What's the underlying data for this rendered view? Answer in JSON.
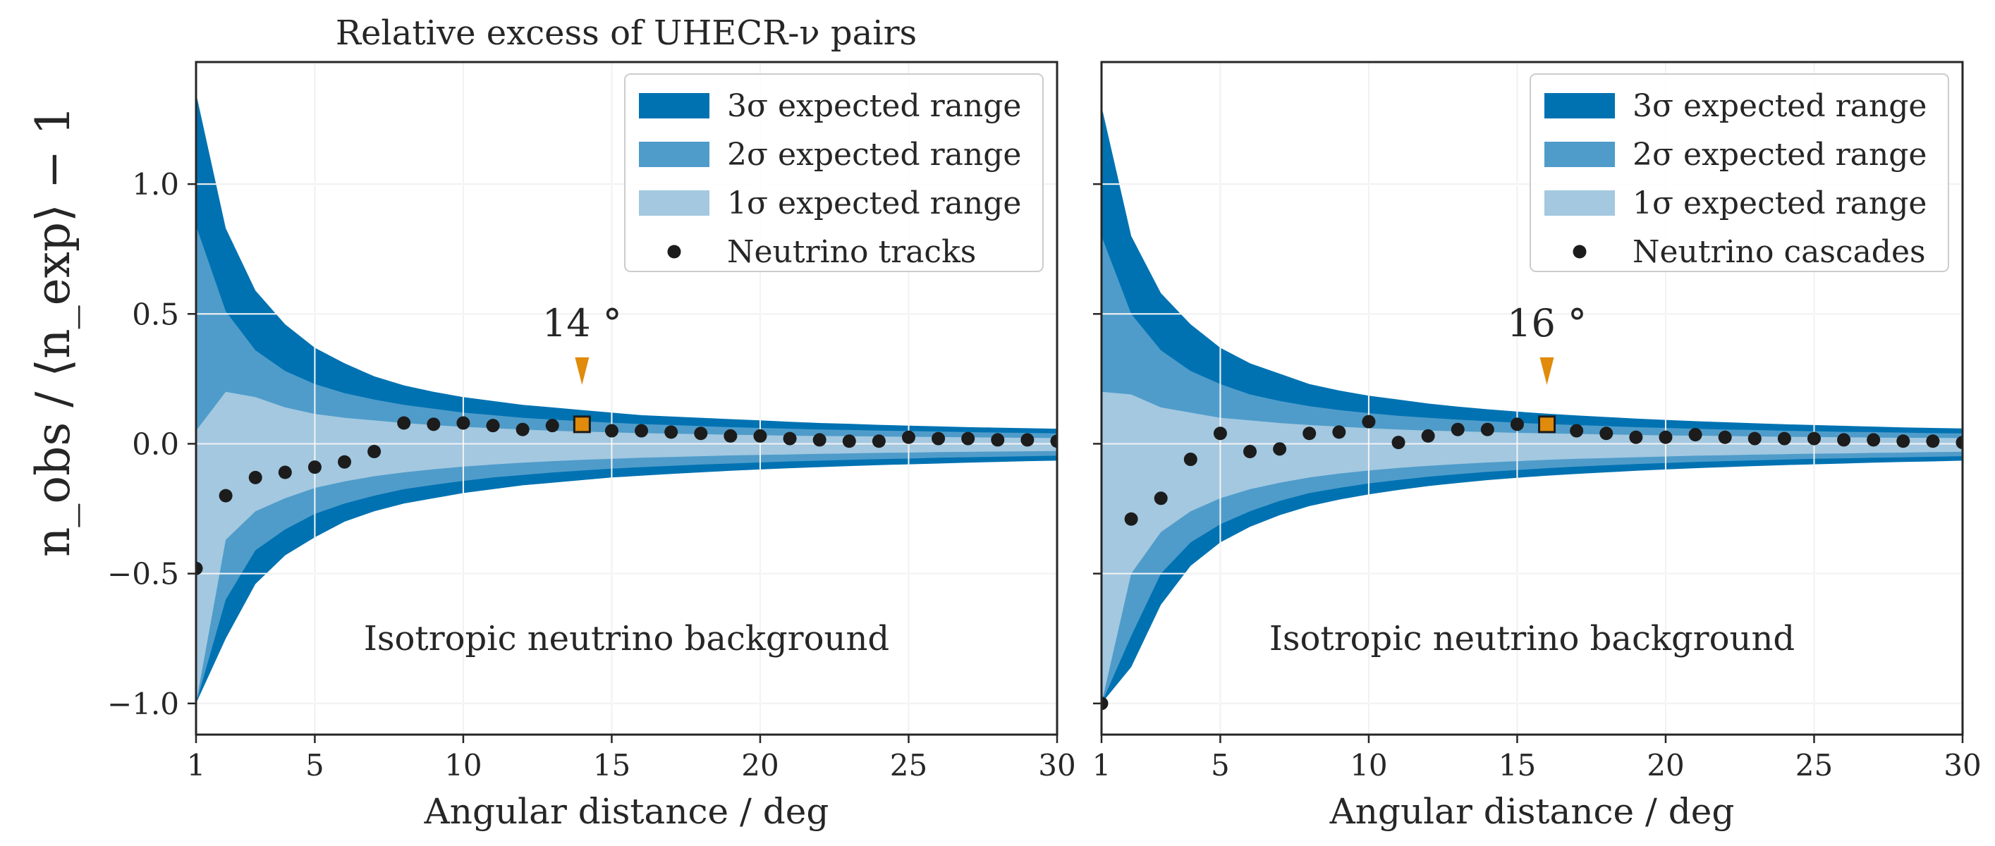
{
  "chart_data": [
    {
      "type": "scatter",
      "title": "Relative excess of UHECR-ν pairs",
      "xlabel": "Angular distance / deg",
      "ylabel": "n_obs / ⟨n_exp⟩ − 1",
      "xlim": [
        1,
        30
      ],
      "ylim": [
        -1.12,
        1.47
      ],
      "grid": true,
      "xticks": [
        1,
        5,
        10,
        15,
        20,
        25,
        30
      ],
      "xtick_labels": [
        "1",
        "5",
        "10",
        "15",
        "20",
        "25",
        "30"
      ],
      "yticks": [
        -1.0,
        -0.5,
        0.0,
        0.5,
        1.0
      ],
      "ytick_labels": [
        "−1.0",
        "−0.5",
        "0.0",
        "0.5",
        "1.0"
      ],
      "bands_x": [
        1,
        2,
        3,
        4,
        5,
        6,
        7,
        8,
        9,
        10,
        11,
        12,
        13,
        14,
        15,
        16,
        17,
        18,
        19,
        20,
        21,
        22,
        23,
        24,
        25,
        26,
        27,
        28,
        29,
        30
      ],
      "band_3sigma_upper": [
        1.35,
        0.83,
        0.59,
        0.46,
        0.37,
        0.31,
        0.26,
        0.225,
        0.2,
        0.18,
        0.165,
        0.15,
        0.14,
        0.13,
        0.12,
        0.11,
        0.105,
        0.1,
        0.095,
        0.09,
        0.085,
        0.08,
        0.077,
        0.073,
        0.07,
        0.067,
        0.064,
        0.062,
        0.06,
        0.058
      ],
      "band_2sigma_upper": [
        0.84,
        0.51,
        0.36,
        0.28,
        0.23,
        0.195,
        0.17,
        0.15,
        0.135,
        0.12,
        0.11,
        0.1,
        0.093,
        0.087,
        0.081,
        0.076,
        0.072,
        0.068,
        0.064,
        0.061,
        0.058,
        0.055,
        0.053,
        0.051,
        0.049,
        0.047,
        0.045,
        0.043,
        0.042,
        0.04
      ],
      "band_1sigma_upper": [
        0.05,
        0.2,
        0.18,
        0.14,
        0.115,
        0.1,
        0.09,
        0.08,
        0.072,
        0.065,
        0.06,
        0.055,
        0.05,
        0.047,
        0.044,
        0.041,
        0.039,
        0.037,
        0.035,
        0.033,
        0.031,
        0.03,
        0.029,
        0.028,
        0.027,
        0.026,
        0.025,
        0.024,
        0.023,
        0.022
      ],
      "band_1sigma_lower": [
        -1.0,
        -0.37,
        -0.26,
        -0.21,
        -0.17,
        -0.145,
        -0.125,
        -0.11,
        -0.098,
        -0.088,
        -0.08,
        -0.073,
        -0.067,
        -0.062,
        -0.058,
        -0.054,
        -0.051,
        -0.048,
        -0.045,
        -0.043,
        -0.041,
        -0.039,
        -0.037,
        -0.035,
        -0.034,
        -0.032,
        -0.031,
        -0.03,
        -0.029,
        -0.028
      ],
      "band_2sigma_lower": [
        -1.0,
        -0.6,
        -0.41,
        -0.33,
        -0.27,
        -0.23,
        -0.2,
        -0.175,
        -0.158,
        -0.143,
        -0.13,
        -0.12,
        -0.111,
        -0.103,
        -0.096,
        -0.09,
        -0.085,
        -0.08,
        -0.076,
        -0.072,
        -0.068,
        -0.065,
        -0.062,
        -0.059,
        -0.057,
        -0.054,
        -0.052,
        -0.05,
        -0.048,
        -0.046
      ],
      "band_3sigma_lower": [
        -1.0,
        -0.75,
        -0.54,
        -0.43,
        -0.36,
        -0.3,
        -0.26,
        -0.23,
        -0.21,
        -0.19,
        -0.175,
        -0.16,
        -0.15,
        -0.14,
        -0.13,
        -0.123,
        -0.116,
        -0.11,
        -0.104,
        -0.099,
        -0.094,
        -0.09,
        -0.086,
        -0.082,
        -0.079,
        -0.076,
        -0.073,
        -0.07,
        -0.067,
        -0.065
      ],
      "points_x": [
        1,
        2,
        3,
        4,
        5,
        6,
        7,
        8,
        9,
        10,
        11,
        12,
        13,
        14,
        15,
        16,
        17,
        18,
        19,
        20,
        21,
        22,
        23,
        24,
        25,
        26,
        27,
        28,
        29,
        30
      ],
      "points_y": [
        -0.48,
        -0.2,
        -0.13,
        -0.11,
        -0.09,
        -0.07,
        -0.03,
        0.08,
        0.075,
        0.08,
        0.07,
        0.055,
        0.07,
        0.075,
        0.05,
        0.05,
        0.045,
        0.04,
        0.03,
        0.03,
        0.02,
        0.015,
        0.01,
        0.01,
        0.025,
        0.02,
        0.02,
        0.015,
        0.015,
        0.01
      ],
      "marker": {
        "x": 14,
        "y": 0.075,
        "label": "14 °"
      },
      "annotation": "Isotropic neutrino background",
      "legend_position": "top-right",
      "legend": [
        "3σ expected range",
        "2σ expected range",
        "1σ expected range",
        "Neutrino tracks"
      ]
    },
    {
      "type": "scatter",
      "title": "",
      "xlabel": "Angular distance / deg",
      "ylabel": "",
      "xlim": [
        1,
        30
      ],
      "ylim": [
        -1.12,
        1.47
      ],
      "grid": true,
      "xticks": [
        1,
        5,
        10,
        15,
        20,
        25,
        30
      ],
      "xtick_labels": [
        "1",
        "5",
        "10",
        "15",
        "20",
        "25",
        "30"
      ],
      "yticks": [
        -1.0,
        -0.5,
        0.0,
        0.5,
        1.0
      ],
      "ytick_labels": [],
      "bands_x": [
        1,
        2,
        3,
        4,
        5,
        6,
        7,
        8,
        9,
        10,
        11,
        12,
        13,
        14,
        15,
        16,
        17,
        18,
        19,
        20,
        21,
        22,
        23,
        24,
        25,
        26,
        27,
        28,
        29,
        30
      ],
      "band_3sigma_upper": [
        1.3,
        0.8,
        0.58,
        0.46,
        0.37,
        0.31,
        0.27,
        0.23,
        0.205,
        0.185,
        0.17,
        0.155,
        0.143,
        0.133,
        0.124,
        0.116,
        0.109,
        0.103,
        0.097,
        0.092,
        0.087,
        0.083,
        0.079,
        0.075,
        0.072,
        0.069,
        0.066,
        0.063,
        0.061,
        0.059
      ],
      "band_2sigma_upper": [
        0.8,
        0.5,
        0.36,
        0.28,
        0.23,
        0.19,
        0.165,
        0.145,
        0.13,
        0.118,
        0.108,
        0.1,
        0.093,
        0.087,
        0.081,
        0.076,
        0.072,
        0.068,
        0.064,
        0.061,
        0.058,
        0.055,
        0.053,
        0.05,
        0.048,
        0.046,
        0.045,
        0.043,
        0.041,
        0.04
      ],
      "band_1sigma_upper": [
        0.2,
        0.19,
        0.14,
        0.12,
        0.1,
        0.09,
        0.08,
        0.072,
        0.066,
        0.06,
        0.055,
        0.051,
        0.048,
        0.045,
        0.042,
        0.04,
        0.038,
        0.036,
        0.034,
        0.032,
        0.031,
        0.03,
        0.028,
        0.027,
        0.026,
        0.025,
        0.024,
        0.023,
        0.023,
        0.022
      ],
      "band_1sigma_lower": [
        -1.0,
        -0.5,
        -0.34,
        -0.26,
        -0.21,
        -0.175,
        -0.15,
        -0.13,
        -0.115,
        -0.103,
        -0.093,
        -0.085,
        -0.078,
        -0.072,
        -0.067,
        -0.062,
        -0.058,
        -0.055,
        -0.052,
        -0.049,
        -0.046,
        -0.044,
        -0.042,
        -0.04,
        -0.038,
        -0.037,
        -0.035,
        -0.034,
        -0.032,
        -0.031
      ],
      "band_2sigma_lower": [
        -1.0,
        -0.74,
        -0.5,
        -0.38,
        -0.31,
        -0.26,
        -0.22,
        -0.19,
        -0.17,
        -0.153,
        -0.139,
        -0.127,
        -0.117,
        -0.108,
        -0.101,
        -0.094,
        -0.088,
        -0.083,
        -0.078,
        -0.074,
        -0.07,
        -0.067,
        -0.064,
        -0.061,
        -0.058,
        -0.056,
        -0.054,
        -0.052,
        -0.05,
        -0.048
      ],
      "band_3sigma_lower": [
        -1.0,
        -0.86,
        -0.62,
        -0.47,
        -0.38,
        -0.32,
        -0.275,
        -0.24,
        -0.215,
        -0.195,
        -0.178,
        -0.163,
        -0.151,
        -0.14,
        -0.131,
        -0.123,
        -0.116,
        -0.11,
        -0.104,
        -0.099,
        -0.094,
        -0.09,
        -0.086,
        -0.082,
        -0.079,
        -0.076,
        -0.073,
        -0.07,
        -0.068,
        -0.065
      ],
      "points_x": [
        1,
        2,
        3,
        4,
        5,
        6,
        7,
        8,
        9,
        10,
        11,
        12,
        13,
        14,
        15,
        16,
        17,
        18,
        19,
        20,
        21,
        22,
        23,
        24,
        25,
        26,
        27,
        28,
        29,
        30
      ],
      "points_y": [
        -1.0,
        -0.29,
        -0.21,
        -0.06,
        0.04,
        -0.03,
        -0.02,
        0.04,
        0.045,
        0.085,
        0.005,
        0.03,
        0.055,
        0.055,
        0.075,
        0.075,
        0.05,
        0.04,
        0.025,
        0.025,
        0.035,
        0.025,
        0.02,
        0.02,
        0.02,
        0.015,
        0.015,
        0.01,
        0.01,
        0.005
      ],
      "marker": {
        "x": 16,
        "y": 0.075,
        "label": "16 °"
      },
      "annotation": "Isotropic neutrino background",
      "legend_position": "top-right",
      "legend": [
        "3σ expected range",
        "2σ expected range",
        "1σ expected range",
        "Neutrino cascades"
      ]
    }
  ],
  "colors": {
    "band_3sigma": "#0072b2",
    "band_2sigma": "#4f9cca",
    "band_1sigma": "#a3c8e0",
    "points": "#1c1c1c",
    "marker": "#e08b0b",
    "axis": "#262626",
    "grid": "#ffffff"
  }
}
